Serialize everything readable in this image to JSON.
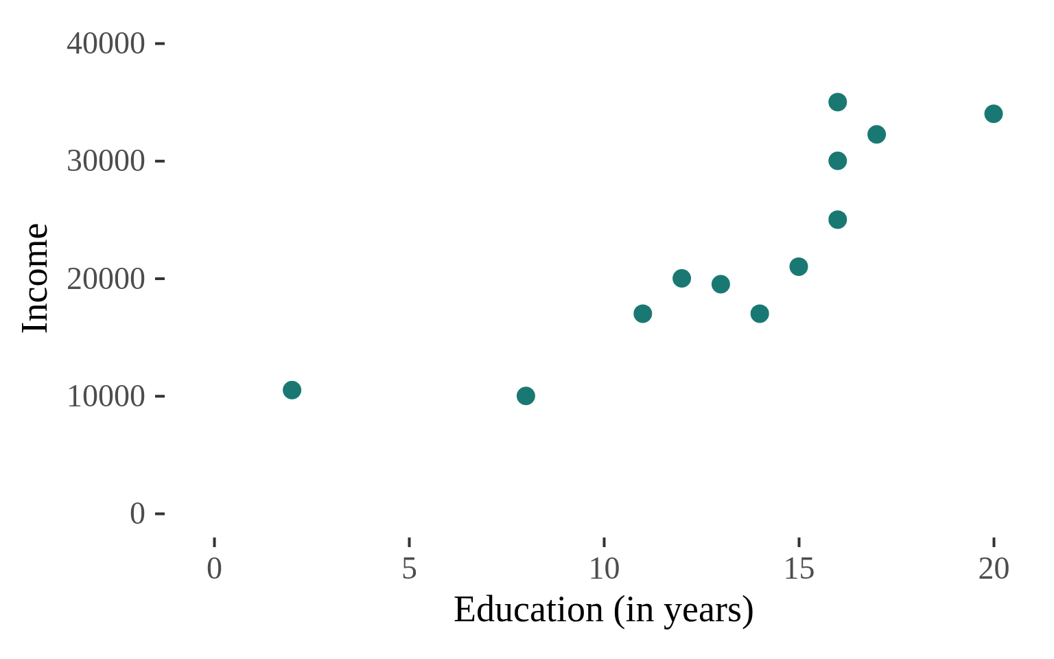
{
  "chart_data": {
    "type": "scatter",
    "xlabel": "Education (in years)",
    "ylabel": "Income",
    "x": [
      2,
      8,
      11,
      12,
      13,
      14,
      15,
      16,
      16,
      16,
      17,
      20
    ],
    "values": [
      10500,
      10000,
      17000,
      20000,
      19500,
      17000,
      21000,
      25000,
      30000,
      35000,
      32250,
      34000
    ],
    "color": "#1a7873",
    "marker": "circle",
    "xlim": [
      0,
      20
    ],
    "ylim": [
      0,
      40000
    ],
    "xticks": [
      0,
      5,
      10,
      15,
      20
    ],
    "yticks": [
      0,
      10000,
      20000,
      30000,
      40000
    ]
  }
}
